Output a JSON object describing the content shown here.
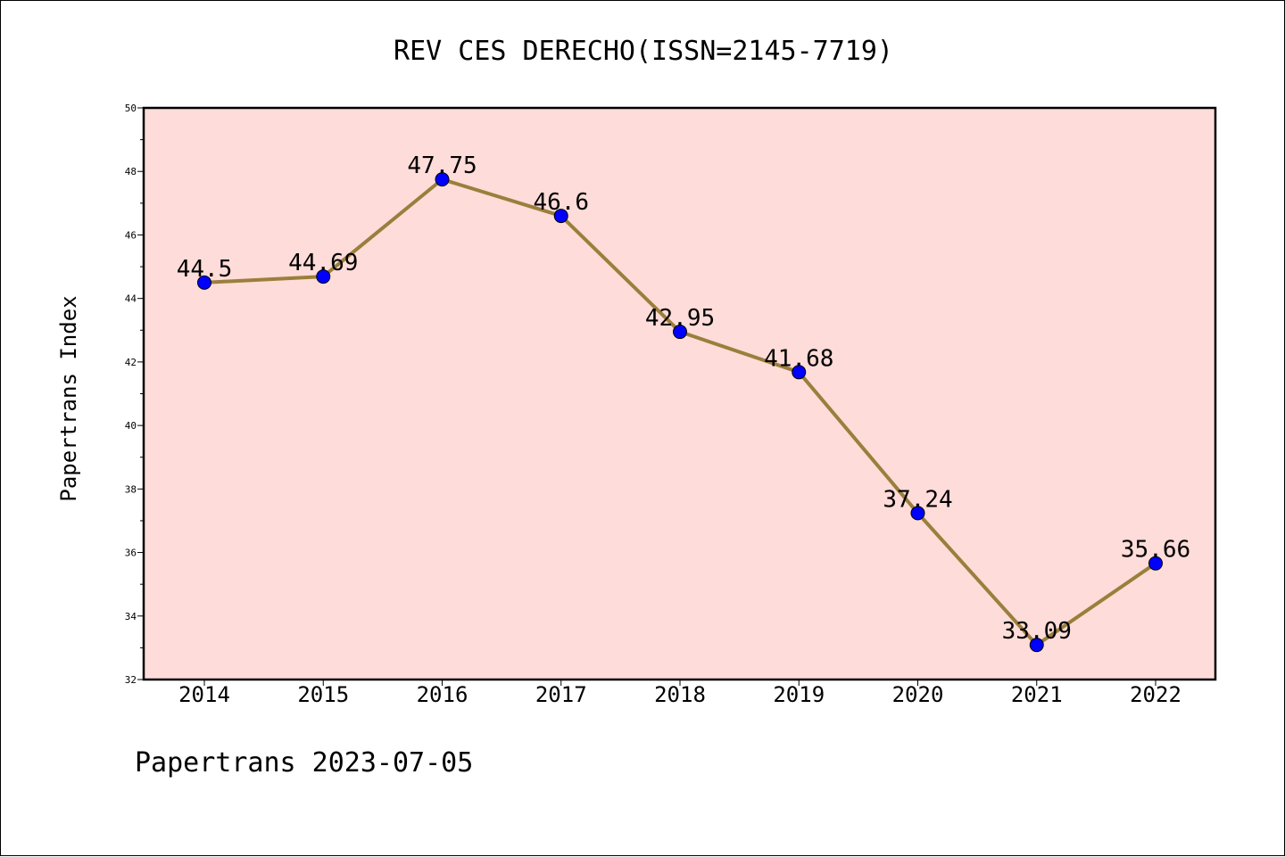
{
  "chart_data": {
    "type": "line",
    "title": "REV CES DERECHO(ISSN=2145-7719)",
    "xlabel": "",
    "ylabel": "Papertrans Index",
    "categories": [
      "2014",
      "2015",
      "2016",
      "2017",
      "2018",
      "2019",
      "2020",
      "2021",
      "2022"
    ],
    "series": [
      {
        "values": [
          44.5,
          44.69,
          47.75,
          46.6,
          42.95,
          41.68,
          37.24,
          33.09,
          35.66
        ],
        "labels": [
          "44.5",
          "44.69",
          "47.75",
          "46.6",
          "42.95",
          "41.68",
          "37.24",
          "33.09",
          "35.66"
        ]
      }
    ],
    "ylim": [
      32,
      50
    ],
    "yticks": [
      "32",
      "34",
      "36",
      "38",
      "40",
      "42",
      "44",
      "46",
      "48",
      "50"
    ],
    "grid": false,
    "legend": "none",
    "colors": {
      "plot_background": "#fddcd9",
      "line": "#9a7f3c",
      "marker": "#0000ff"
    }
  },
  "footer": "Papertrans 2023-07-05"
}
